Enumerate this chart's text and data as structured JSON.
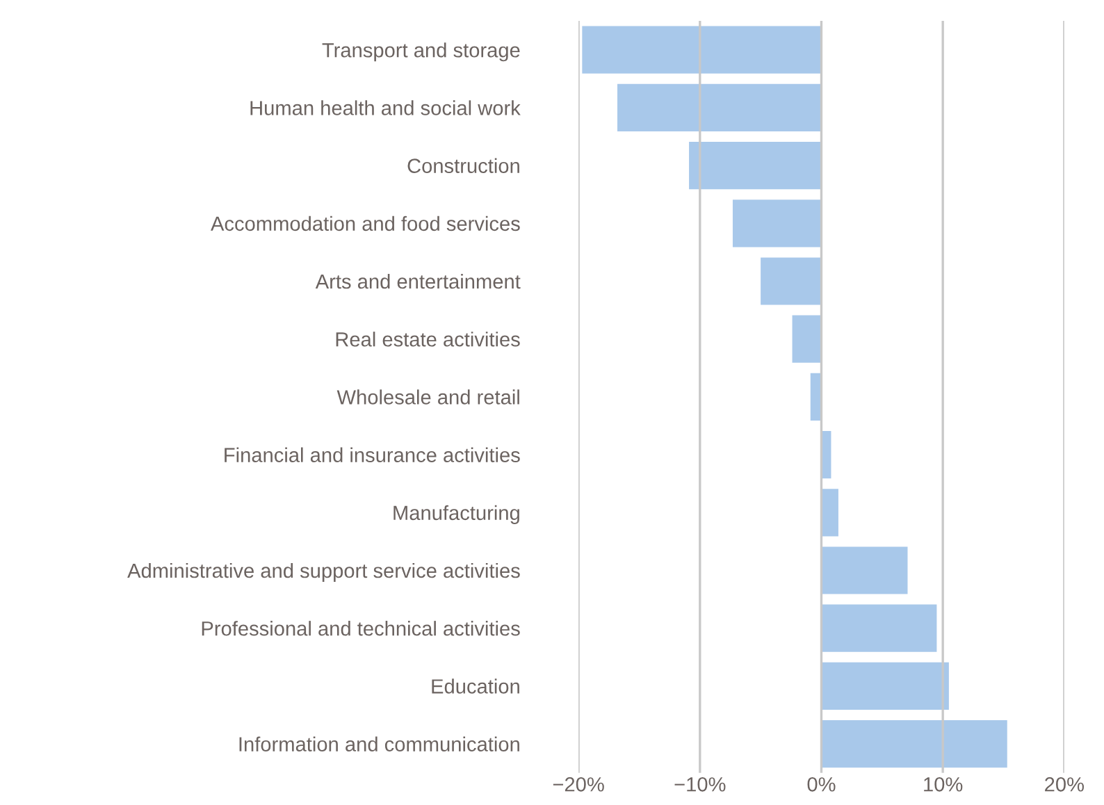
{
  "chart_data": {
    "type": "bar",
    "orientation": "horizontal",
    "categories": [
      "Transport and storage",
      "Human health and social work",
      "Construction",
      "Accommodation and food services",
      "Arts and entertainment",
      "Real estate activities",
      "Wholesale and retail",
      "Financial and insurance activities",
      "Manufacturing",
      "Administrative and support service activities",
      "Professional and technical activities",
      "Education",
      "Information and communication"
    ],
    "values": [
      -19.7,
      -16.8,
      -10.9,
      -7.3,
      -5.0,
      -2.4,
      -0.9,
      0.8,
      1.4,
      7.1,
      9.5,
      10.5,
      15.3
    ],
    "color": "#a8c8ea",
    "xlim": [
      -20,
      20
    ],
    "xticks": [
      {
        "value": -20,
        "label": "−20%"
      },
      {
        "value": -10,
        "label": "−10%"
      },
      {
        "value": 0,
        "label": "0%"
      },
      {
        "value": 10,
        "label": "10%"
      },
      {
        "value": 20,
        "label": "20%"
      }
    ],
    "grid": "x"
  }
}
